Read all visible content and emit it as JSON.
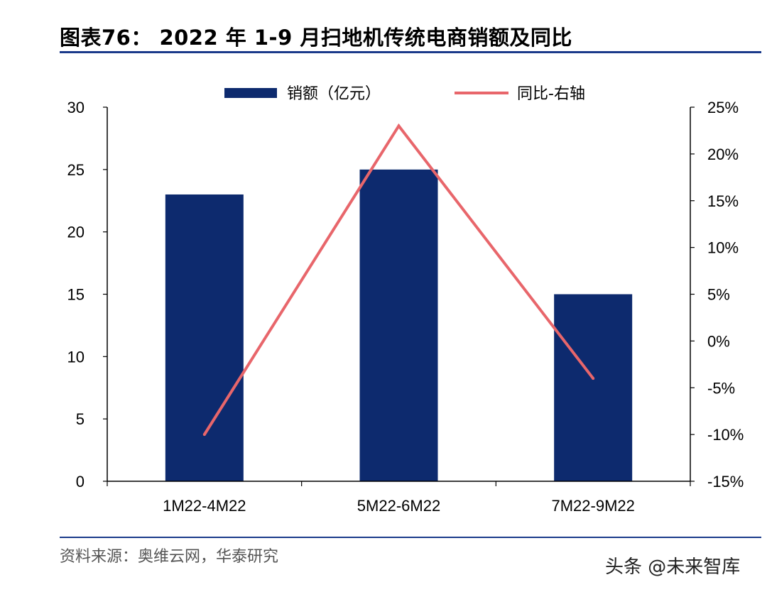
{
  "header": {
    "title": "图表76： 2022 年 1-9 月扫地机传统电商销额及同比"
  },
  "footer": {
    "source": "资料来源：奥维云网，华泰研究",
    "watermark": "头条 @未来智库"
  },
  "colors": {
    "bar": "#0d2a6e",
    "line": "#e8666b",
    "rule": "#1a3a8a"
  },
  "chart_data": {
    "type": "bar",
    "title": "2022 年 1-9 月扫地机传统电商销额及同比",
    "categories": [
      "1M22-4M22",
      "5M22-6M22",
      "7M22-9M22"
    ],
    "series": [
      {
        "name": "销额（亿元）",
        "type": "bar",
        "axis": "left",
        "values": [
          23,
          25,
          15
        ]
      },
      {
        "name": "同比-右轴",
        "type": "line",
        "axis": "right",
        "values": [
          -10,
          23,
          -4
        ]
      }
    ],
    "y_left": {
      "min": 0,
      "max": 30,
      "ticks": [
        "0",
        "5",
        "10",
        "15",
        "20",
        "25",
        "30"
      ]
    },
    "y_right": {
      "min": -15,
      "max": 25,
      "ticks": [
        "-15%",
        "-10%",
        "-5%",
        "0%",
        "5%",
        "10%",
        "15%",
        "20%",
        "25%"
      ]
    },
    "legend": [
      "销额（亿元）",
      "同比-右轴"
    ],
    "legend_position": "top-center",
    "grid": false
  }
}
